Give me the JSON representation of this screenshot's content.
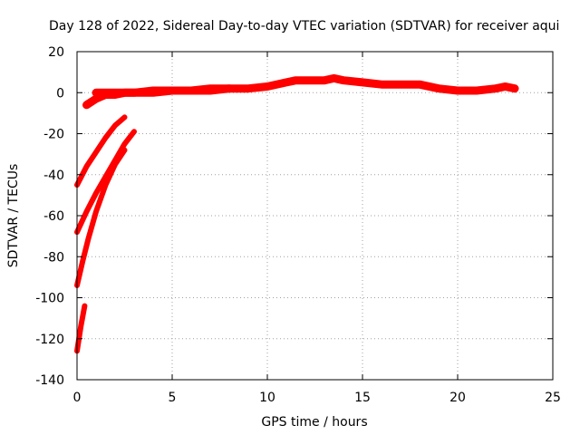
{
  "chart_data": {
    "type": "line",
    "title": "Day 128 of 2022, Sidereal Day-to-day VTEC variation (SDTVAR) for receiver aqui",
    "xlabel": "GPS time / hours",
    "ylabel": "SDTVAR / TECUs",
    "xlim": [
      0,
      25
    ],
    "ylim": [
      -140,
      20
    ],
    "xticks": [
      0,
      5,
      10,
      15,
      20,
      25
    ],
    "yticks": [
      -140,
      -120,
      -100,
      -80,
      -60,
      -40,
      -20,
      0,
      20
    ],
    "grid": true,
    "series_color": "#ff0000",
    "series": [
      {
        "x": [
          0.5,
          1.0,
          1.5,
          2.0,
          2.5,
          3.0,
          4.0,
          5.0,
          6.0,
          7.0,
          8.0,
          9.0,
          10.0,
          11.0,
          11.5,
          12.0,
          13.0,
          13.5,
          14.0,
          15.0,
          16.0,
          17.0,
          18.0,
          19.0,
          20.0,
          21.0,
          22.0,
          22.5,
          23.0
        ],
        "y": [
          -6,
          -3,
          -1,
          -1,
          0,
          0,
          1,
          1,
          1,
          2,
          2,
          2,
          3,
          5,
          6,
          6,
          6,
          7,
          6,
          5,
          4,
          4,
          4,
          2,
          1,
          1,
          2,
          3,
          2
        ]
      },
      {
        "x": [
          1.0,
          1.5,
          2.0,
          2.5,
          3.0,
          4.0,
          5.0,
          6.0,
          7.0,
          8.0
        ],
        "y": [
          0,
          0,
          0,
          0,
          0,
          0,
          1,
          1,
          1,
          2
        ]
      },
      {
        "x": [
          0.0,
          0.5,
          1.0,
          1.5,
          2.0,
          2.5
        ],
        "y": [
          -45,
          -36,
          -29,
          -22,
          -16,
          -12
        ]
      },
      {
        "x": [
          0.0,
          0.5,
          1.0,
          1.5,
          2.0,
          2.5,
          3.0
        ],
        "y": [
          -68,
          -58,
          -49,
          -41,
          -33,
          -25,
          -19
        ]
      },
      {
        "x": [
          0.0,
          0.3,
          0.6,
          1.0,
          1.5,
          2.0,
          2.5
        ],
        "y": [
          -94,
          -82,
          -71,
          -58,
          -45,
          -35,
          -28
        ]
      },
      {
        "x": [
          0.0,
          0.1,
          0.2,
          0.3,
          0.4
        ],
        "y": [
          -126,
          -120,
          -114,
          -109,
          -104
        ]
      }
    ]
  }
}
